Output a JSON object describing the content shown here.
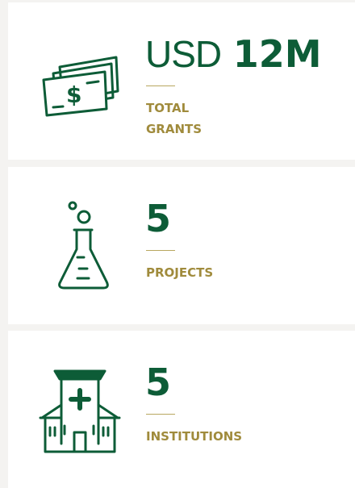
{
  "cards": [
    {
      "prefix": "USD",
      "value": "12M",
      "label": [
        "TOTAL",
        "GRANTS"
      ]
    },
    {
      "value": 5,
      "label": [
        "PROJECTS"
      ]
    },
    {
      "value": 5,
      "label": [
        "INSTITUTIONS"
      ]
    }
  ]
}
